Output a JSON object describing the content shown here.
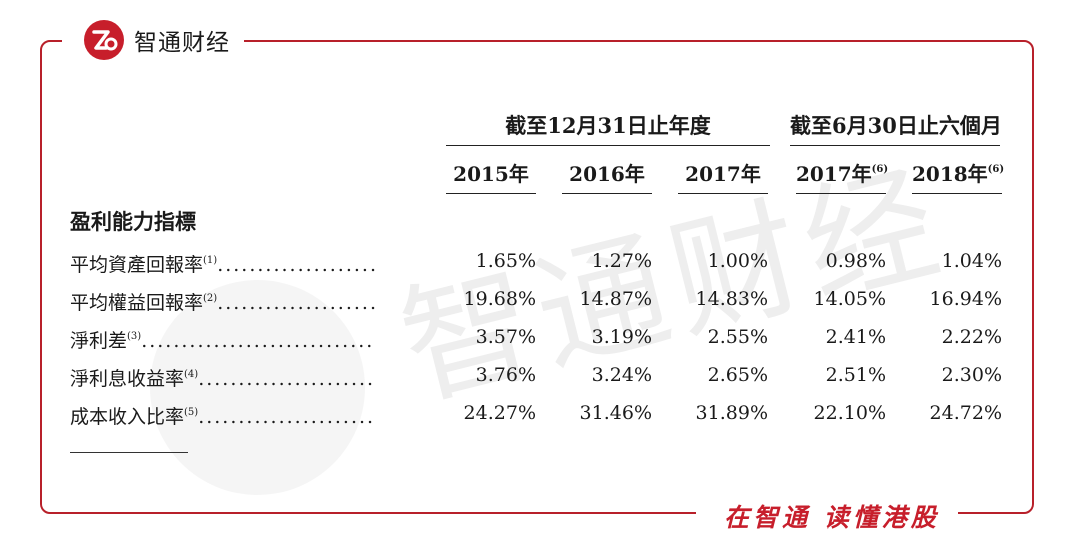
{
  "brand": {
    "name": "智通财经",
    "logo_mark": "Z",
    "slogan": "在智通  读懂港股",
    "accent": "#c71e2b"
  },
  "watermark": {
    "text": "智通财经"
  },
  "table": {
    "group_headers": [
      "截至12月31日止年度",
      "截至6月30日止六個月"
    ],
    "columns": [
      {
        "year": "2015年",
        "note": ""
      },
      {
        "year": "2016年",
        "note": ""
      },
      {
        "year": "2017年",
        "note": ""
      },
      {
        "year": "2017年",
        "note": "(6)"
      },
      {
        "year": "2018年",
        "note": "(6)"
      }
    ],
    "section_title": "盈利能力指標",
    "rows": [
      {
        "label": "平均資產回報率",
        "note": "(1)",
        "values": [
          "1.65%",
          "1.27%",
          "1.00%",
          "0.98%",
          "1.04%"
        ]
      },
      {
        "label": "平均權益回報率",
        "note": "(2)",
        "values": [
          "19.68%",
          "14.87%",
          "14.83%",
          "14.05%",
          "16.94%"
        ]
      },
      {
        "label": "淨利差",
        "note": "(3)",
        "values": [
          "3.57%",
          "3.19%",
          "2.55%",
          "2.41%",
          "2.22%"
        ]
      },
      {
        "label": "淨利息收益率",
        "note": "(4)",
        "values": [
          "3.76%",
          "3.24%",
          "2.65%",
          "2.51%",
          "2.30%"
        ]
      },
      {
        "label": "成本收入比率",
        "note": "(5)",
        "values": [
          "24.27%",
          "31.46%",
          "31.89%",
          "22.10%",
          "24.72%"
        ]
      }
    ]
  }
}
